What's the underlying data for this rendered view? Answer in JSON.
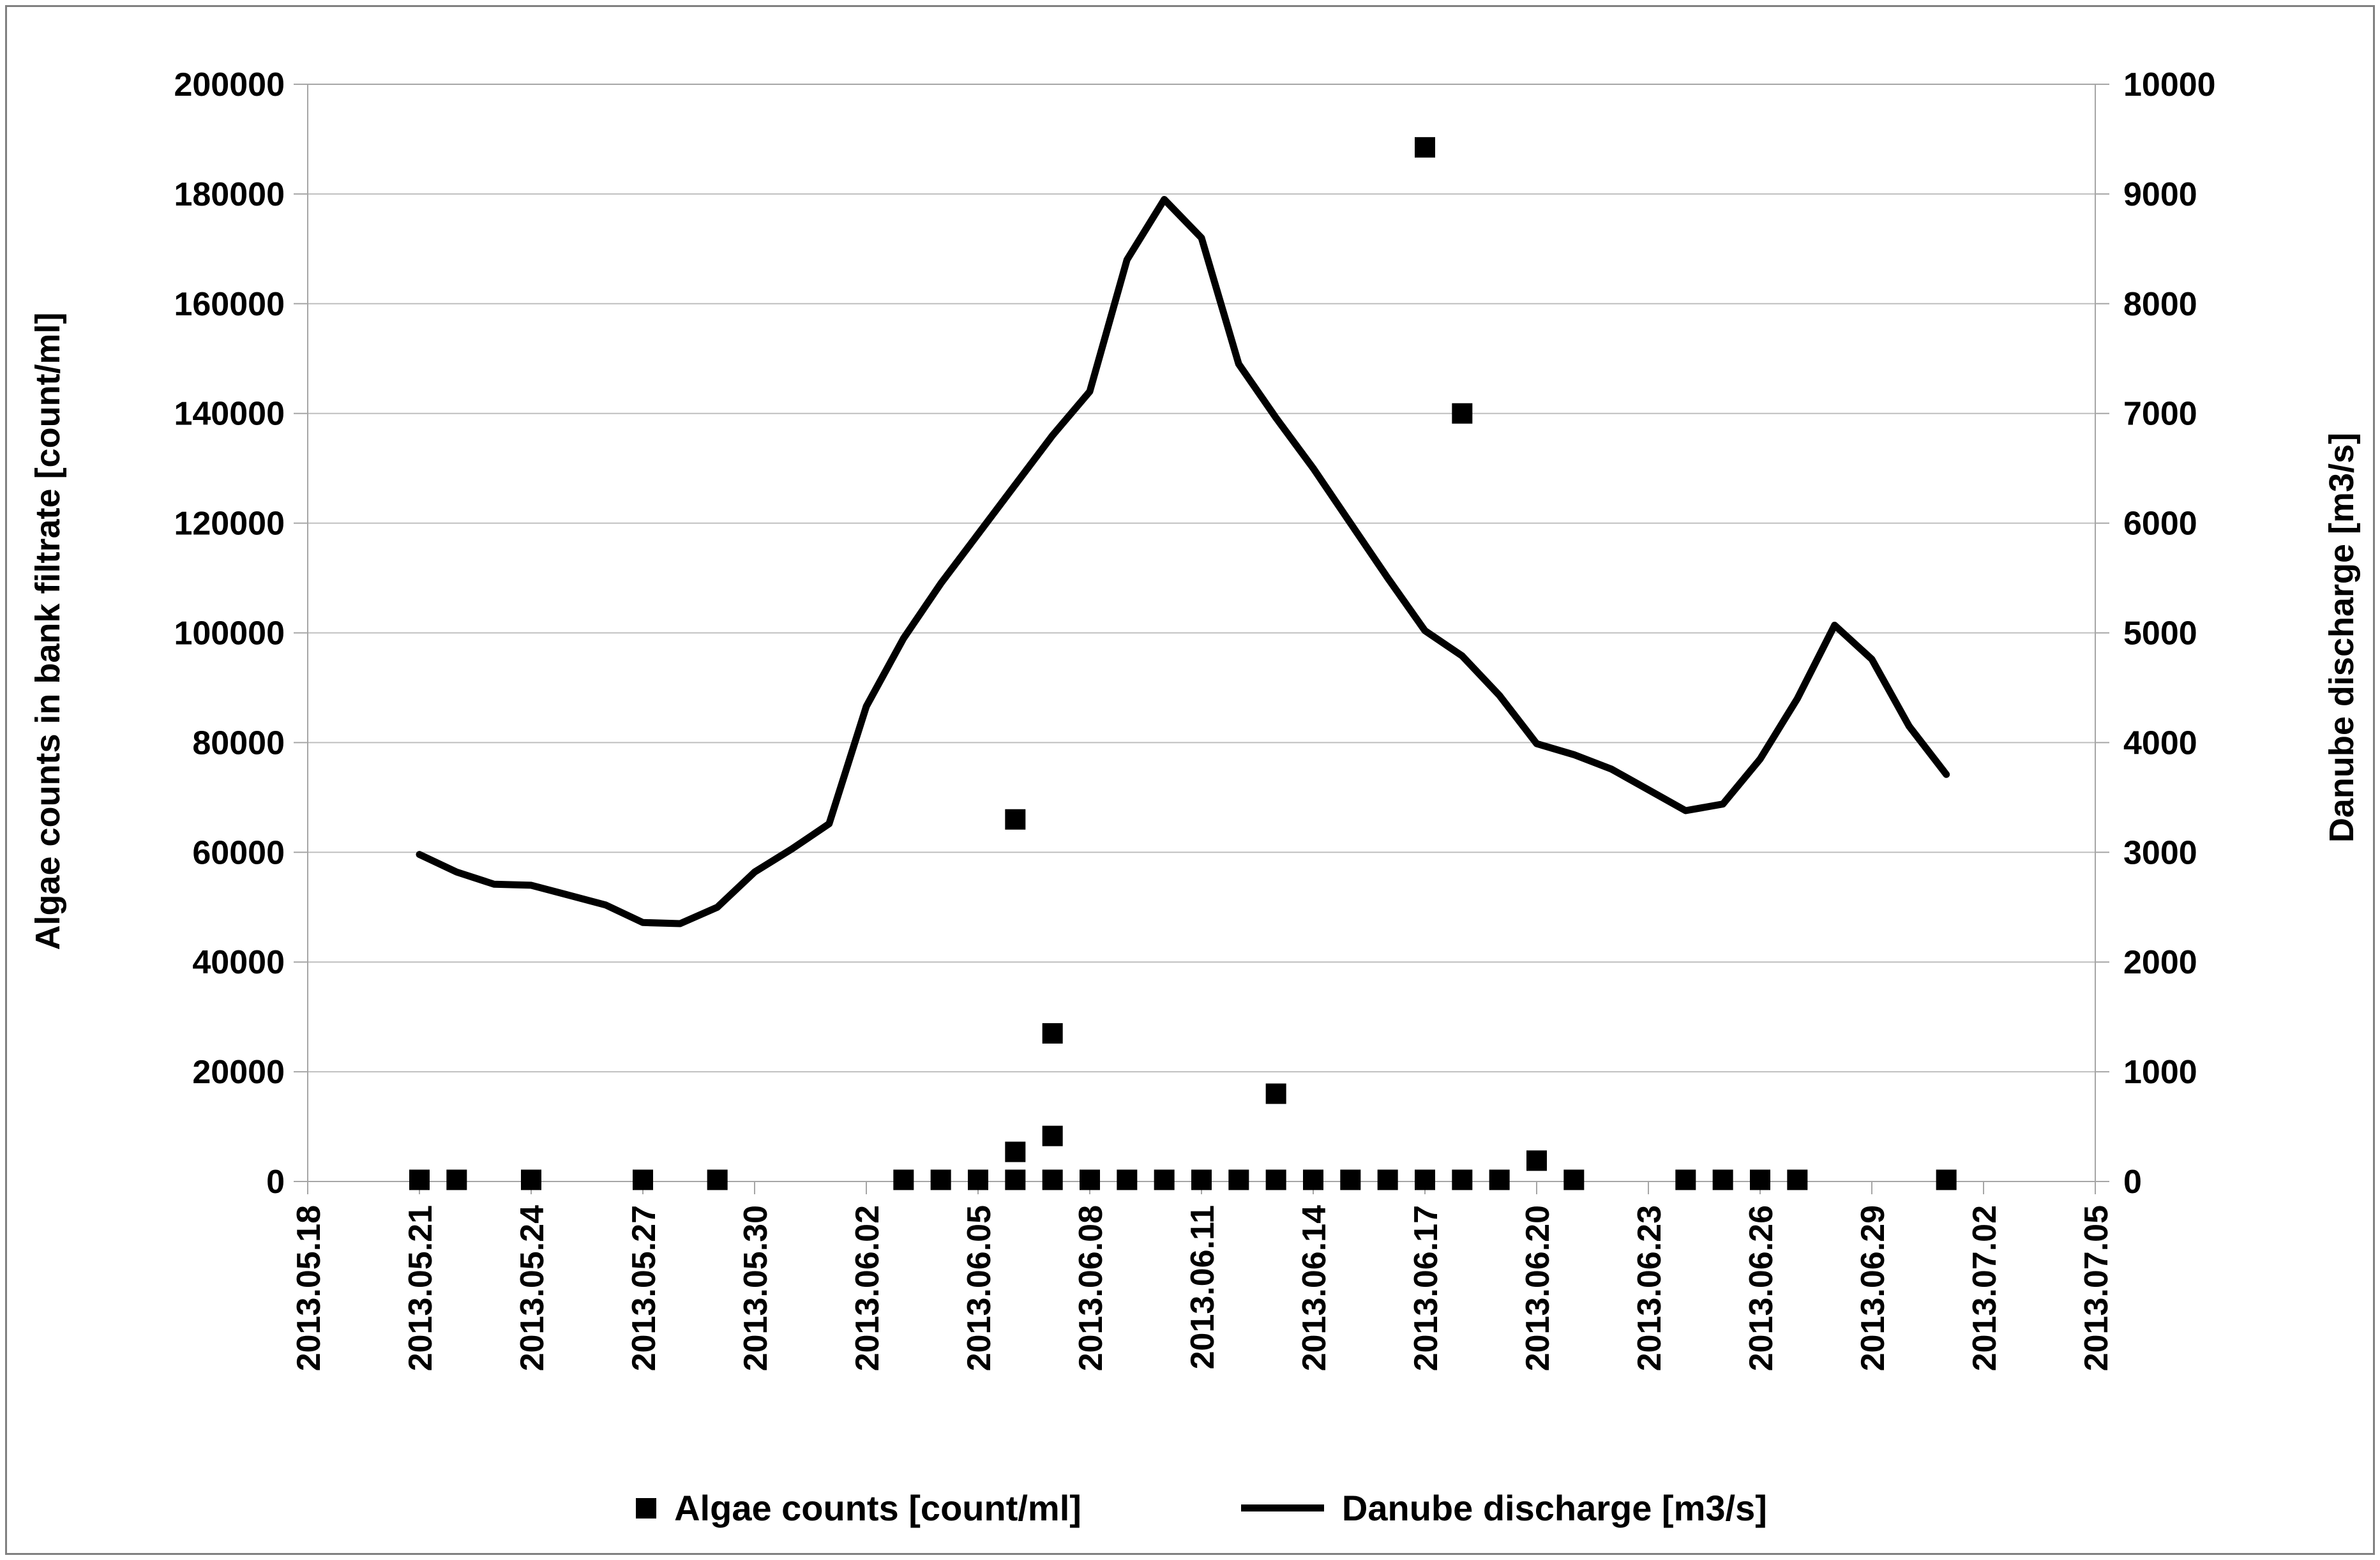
{
  "figure": {
    "background": "#ffffff",
    "border_color": "#808080"
  },
  "titles": {
    "y_left": "Algae counts in bank filtrate [count/ml]",
    "y_right": "Danube discharge [m3/s]"
  },
  "legend": {
    "algae_label": "Algae counts [count/ml]",
    "discharge_label": "Danube discharge [m3/s]"
  },
  "colors": {
    "series": "#000000",
    "gridline": "#bfbfbf",
    "axis": "#a6a6a6",
    "text": "#000000"
  },
  "chart_data": {
    "type": "combo",
    "title": "",
    "grid": "horizontal",
    "legend_position": "bottom",
    "x_axis": {
      "start_date": "2013.05.18",
      "end_date": "2013.07.05",
      "tick_interval_days": 3,
      "tick_labels": [
        "2013.05.18",
        "2013.05.21",
        "2013.05.24",
        "2013.05.27",
        "2013.05.30",
        "2013.06.02",
        "2013.06.05",
        "2013.06.08",
        "2013.06.11",
        "2013.06.14",
        "2013.06.17",
        "2013.06.20",
        "2013.06.23",
        "2013.06.26",
        "2013.06.29",
        "2013.07.02",
        "2013.07.05"
      ]
    },
    "y_axis_left": {
      "label": "Algae counts in bank filtrate [count/ml]",
      "min": 0,
      "max": 200000,
      "step": 20000,
      "tick_labels": [
        "0",
        "20000",
        "40000",
        "60000",
        "80000",
        "100000",
        "120000",
        "140000",
        "160000",
        "180000",
        "200000"
      ]
    },
    "y_axis_right": {
      "label": "Danube discharge [m3/s]",
      "min": 0,
      "max": 10000,
      "step": 1000,
      "tick_labels": [
        "0",
        "1000",
        "2000",
        "3000",
        "4000",
        "5000",
        "6000",
        "7000",
        "8000",
        "9000",
        "10000"
      ]
    },
    "series": [
      {
        "name": "Algae counts [count/ml]",
        "type": "scatter",
        "axis": "left",
        "marker": "square",
        "color": "#000000",
        "points": [
          [
            "2013.05.21",
            300
          ],
          [
            "2013.05.22",
            300
          ],
          [
            "2013.05.24",
            300
          ],
          [
            "2013.05.27",
            300
          ],
          [
            "2013.05.29",
            300
          ],
          [
            "2013.06.03",
            300
          ],
          [
            "2013.06.04",
            300
          ],
          [
            "2013.06.05",
            300
          ],
          [
            "2013.06.06",
            66000
          ],
          [
            "2013.06.06",
            5400
          ],
          [
            "2013.06.06",
            300
          ],
          [
            "2013.06.07",
            27000
          ],
          [
            "2013.06.07",
            8300
          ],
          [
            "2013.06.07",
            300
          ],
          [
            "2013.06.08",
            300
          ],
          [
            "2013.06.09",
            300
          ],
          [
            "2013.06.10",
            300
          ],
          [
            "2013.06.11",
            300
          ],
          [
            "2013.06.12",
            300
          ],
          [
            "2013.06.13",
            16000
          ],
          [
            "2013.06.13",
            300
          ],
          [
            "2013.06.14",
            300
          ],
          [
            "2013.06.15",
            300
          ],
          [
            "2013.06.16",
            300
          ],
          [
            "2013.06.17",
            188500
          ],
          [
            "2013.06.17",
            300
          ],
          [
            "2013.06.18",
            140000
          ],
          [
            "2013.06.18",
            300
          ],
          [
            "2013.06.19",
            300
          ],
          [
            "2013.06.20",
            3800
          ],
          [
            "2013.06.21",
            300
          ],
          [
            "2013.06.24",
            300
          ],
          [
            "2013.06.25",
            300
          ],
          [
            "2013.06.26",
            300
          ],
          [
            "2013.06.27",
            300
          ],
          [
            "2013.07.01",
            300
          ]
        ]
      },
      {
        "name": "Danube discharge [m3/s]",
        "type": "line",
        "axis": "right",
        "color": "#000000",
        "stroke_width": 11,
        "points": [
          [
            "2013.05.21",
            2980
          ],
          [
            "2013.05.22",
            2820
          ],
          [
            "2013.05.23",
            2710
          ],
          [
            "2013.05.24",
            2700
          ],
          [
            "2013.05.25",
            2610
          ],
          [
            "2013.05.26",
            2520
          ],
          [
            "2013.05.27",
            2360
          ],
          [
            "2013.05.28",
            2350
          ],
          [
            "2013.05.29",
            2500
          ],
          [
            "2013.05.30",
            2820
          ],
          [
            "2013.05.31",
            3030
          ],
          [
            "2013.06.01",
            3260
          ],
          [
            "2013.06.02",
            4330
          ],
          [
            "2013.06.03",
            4950
          ],
          [
            "2013.06.04",
            5450
          ],
          [
            "2013.06.05",
            5900
          ],
          [
            "2013.06.06",
            6350
          ],
          [
            "2013.06.07",
            6800
          ],
          [
            "2013.06.08",
            7200
          ],
          [
            "2013.06.09",
            8400
          ],
          [
            "2013.06.10",
            8950
          ],
          [
            "2013.06.11",
            8600
          ],
          [
            "2013.06.12",
            7450
          ],
          [
            "2013.06.13",
            6960
          ],
          [
            "2013.06.14",
            6500
          ],
          [
            "2013.06.15",
            6000
          ],
          [
            "2013.06.16",
            5500
          ],
          [
            "2013.06.17",
            5020
          ],
          [
            "2013.06.18",
            4790
          ],
          [
            "2013.06.19",
            4430
          ],
          [
            "2013.06.20",
            3990
          ],
          [
            "2013.06.21",
            3890
          ],
          [
            "2013.06.22",
            3760
          ],
          [
            "2013.06.23",
            3570
          ],
          [
            "2013.06.24",
            3380
          ],
          [
            "2013.06.25",
            3440
          ],
          [
            "2013.06.26",
            3850
          ],
          [
            "2013.06.27",
            4400
          ],
          [
            "2013.06.28",
            5070
          ],
          [
            "2013.06.29",
            4760
          ],
          [
            "2013.06.30",
            4150
          ],
          [
            "2013.07.01",
            3710
          ]
        ]
      }
    ]
  }
}
